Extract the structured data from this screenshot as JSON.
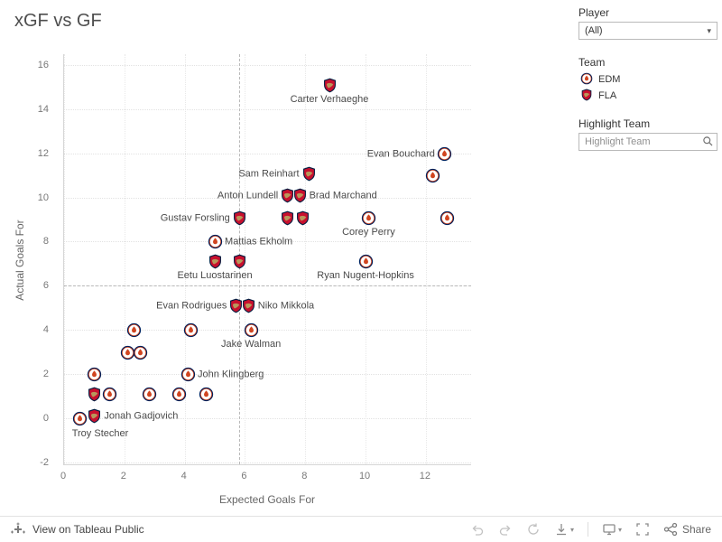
{
  "page": {
    "title": "xGF vs GF"
  },
  "sidebar": {
    "player_label": "Player",
    "player_value": "(All)",
    "team_label": "Team",
    "teams": [
      {
        "code": "EDM"
      },
      {
        "code": "FLA"
      }
    ],
    "highlight_label": "Highlight Team",
    "highlight_placeholder": "Highlight Team"
  },
  "toolbar": {
    "view_text": "View on Tableau Public",
    "share_label": "Share"
  },
  "icons": {
    "tableau_logo": "tableau-plus-cluster",
    "dropdown_caret": "▾",
    "search": "magnifier",
    "undo": "undo-arrow",
    "redo": "redo-arrow",
    "reset": "replay-arrow",
    "download": "download-tray",
    "device": "monitor",
    "fullscreen": "four-corners",
    "share": "share-nodes"
  },
  "colors": {
    "edm_navy": "#00205B",
    "edm_orange": "#D14520",
    "fla_red": "#C8102E",
    "fla_navy": "#041E42",
    "fla_gold": "#B9975B"
  },
  "chart_data": {
    "type": "scatter",
    "title": "xGF vs GF",
    "xlabel": "Expected Goals For",
    "ylabel": "Actual Goals For",
    "xlim": [
      0,
      13.5
    ],
    "ylim": [
      -2.1,
      16.5
    ],
    "x_ticks": [
      0,
      2,
      4,
      6,
      8,
      10,
      12
    ],
    "y_ticks": [
      -2,
      0,
      2,
      4,
      6,
      8,
      10,
      12,
      14,
      16
    ],
    "grid": true,
    "ref_line_x": 5.8,
    "ref_line_y": 6.0,
    "series_legend": [
      "EDM",
      "FLA"
    ],
    "points": [
      {
        "team": "FLA",
        "x": 8.8,
        "y": 15.1,
        "label": "Carter Verhaeghe",
        "label_pos": "below"
      },
      {
        "team": "EDM",
        "x": 12.6,
        "y": 12.0,
        "label": "Evan Bouchard",
        "label_pos": "left"
      },
      {
        "team": "EDM",
        "x": 12.2,
        "y": 11.0
      },
      {
        "team": "FLA",
        "x": 8.1,
        "y": 11.1,
        "label": "Sam Reinhart",
        "label_pos": "left"
      },
      {
        "team": "FLA",
        "x": 7.4,
        "y": 10.1,
        "label": "Anton Lundell",
        "label_pos": "left"
      },
      {
        "team": "FLA",
        "x": 7.8,
        "y": 10.1,
        "label": "Brad Marchand",
        "label_pos": "right"
      },
      {
        "team": "FLA",
        "x": 5.8,
        "y": 9.1,
        "label": "Gustav Forsling",
        "label_pos": "left"
      },
      {
        "team": "FLA",
        "x": 7.4,
        "y": 9.1
      },
      {
        "team": "FLA",
        "x": 7.9,
        "y": 9.1
      },
      {
        "team": "EDM",
        "x": 10.1,
        "y": 9.1,
        "label": "Corey Perry",
        "label_pos": "below"
      },
      {
        "team": "EDM",
        "x": 12.7,
        "y": 9.1
      },
      {
        "team": "EDM",
        "x": 5.0,
        "y": 8.0,
        "label": "Mattias Ekholm",
        "label_pos": "right"
      },
      {
        "team": "FLA",
        "x": 5.0,
        "y": 7.1,
        "label": "Eetu Luostarinen",
        "label_pos": "below"
      },
      {
        "team": "FLA",
        "x": 5.8,
        "y": 7.1
      },
      {
        "team": "EDM",
        "x": 10.0,
        "y": 7.1,
        "label": "Ryan Nugent-Hopkins",
        "label_pos": "below"
      },
      {
        "team": "FLA",
        "x": 5.7,
        "y": 5.1,
        "label": "Evan Rodrigues",
        "label_pos": "left"
      },
      {
        "team": "FLA",
        "x": 6.1,
        "y": 5.1,
        "label": "Niko Mikkola",
        "label_pos": "right"
      },
      {
        "team": "EDM",
        "x": 2.3,
        "y": 4.0
      },
      {
        "team": "EDM",
        "x": 4.2,
        "y": 4.0
      },
      {
        "team": "EDM",
        "x": 6.2,
        "y": 4.0,
        "label": "Jake Walman",
        "label_pos": "below"
      },
      {
        "team": "EDM",
        "x": 2.1,
        "y": 3.0
      },
      {
        "team": "EDM",
        "x": 2.5,
        "y": 3.0
      },
      {
        "team": "EDM",
        "x": 1.0,
        "y": 2.0
      },
      {
        "team": "EDM",
        "x": 4.1,
        "y": 2.0,
        "label": "John Klingberg",
        "label_pos": "right"
      },
      {
        "team": "FLA",
        "x": 1.0,
        "y": 1.1
      },
      {
        "team": "EDM",
        "x": 1.5,
        "y": 1.1
      },
      {
        "team": "EDM",
        "x": 2.8,
        "y": 1.1
      },
      {
        "team": "EDM",
        "x": 3.8,
        "y": 1.1
      },
      {
        "team": "EDM",
        "x": 4.7,
        "y": 1.1
      },
      {
        "team": "EDM",
        "x": 0.5,
        "y": 0.0,
        "label": "Troy Stecher",
        "label_pos": "below-right"
      },
      {
        "team": "FLA",
        "x": 1.0,
        "y": 0.1,
        "label": "Jonah Gadjovich",
        "label_pos": "right"
      }
    ]
  }
}
